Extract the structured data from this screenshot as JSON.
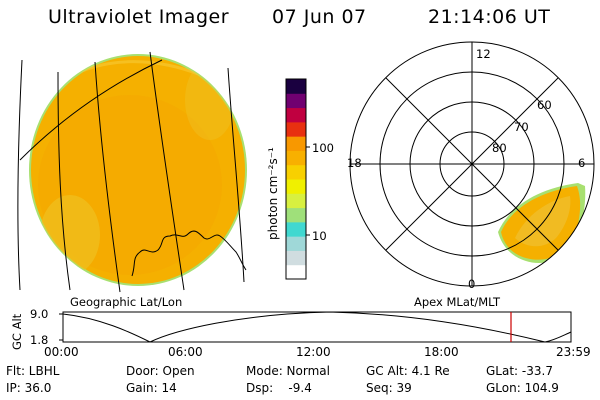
{
  "header": {
    "instrument": "Ultraviolet Imager",
    "date": "07 Jun 07",
    "time": "21:14:06 UT"
  },
  "colorbar": {
    "label": "photon cm⁻²s⁻¹",
    "tick_100": "100",
    "tick_10": "10",
    "colors": [
      "#ffffff",
      "#d0dde0",
      "#9fd8d8",
      "#40d8d0",
      "#9fe07a",
      "#d8f040",
      "#f0f000",
      "#f8d000",
      "#f8b000",
      "#f89800",
      "#e83010",
      "#c00040",
      "#700070",
      "#1a0040"
    ]
  },
  "left_panel": {
    "caption": "Geographic Lat/Lon",
    "fill": "#f5b000",
    "rim": "#f0dc40"
  },
  "right_panel": {
    "caption": "Apex MLat/MLT",
    "mlt_12": "12",
    "mlt_18": "18",
    "mlt_6": "6",
    "mlt_0": "0",
    "lat_60": "60",
    "lat_70": "70",
    "lat_80": "80"
  },
  "gc_alt_plot": {
    "ylabel": "GC Alt",
    "y_top": "9.0",
    "y_bottom": "1.8",
    "x_ticks": [
      "00:00",
      "06:00",
      "12:00",
      "18:00",
      "23:59"
    ],
    "marker_color": "#cc0000"
  },
  "info": {
    "flt": "Flt: LBHL",
    "ip": "IP: 36.0",
    "door": "Door: Open",
    "gain": "Gain: 14",
    "mode": "Mode: Normal",
    "dsp": "Dsp:    -9.4",
    "gcalt": "GC Alt: 4.1 Re",
    "seq": "Seq: 39",
    "glat": "GLat: -33.7",
    "glon": "GLon: 104.9"
  }
}
